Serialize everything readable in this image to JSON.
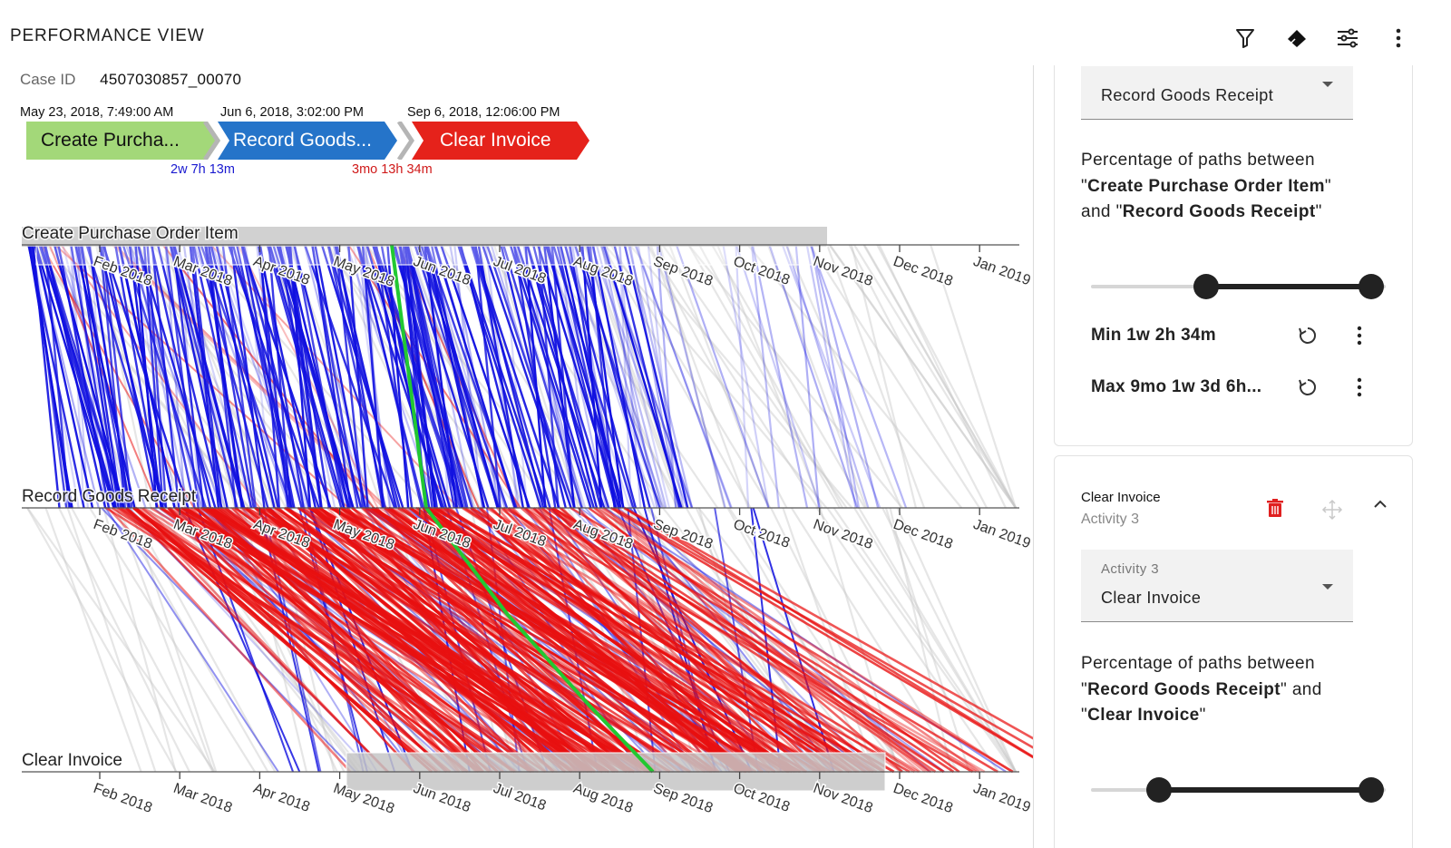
{
  "header": {
    "title": "PERFORMANCE VIEW",
    "icons": [
      "filter-icon",
      "eraser-icon",
      "tune-icon",
      "more-vert-icon"
    ]
  },
  "case": {
    "id_label": "Case ID",
    "id_value": "4507030857_00070"
  },
  "path": {
    "steps": [
      {
        "label": "Create Purcha...",
        "timestamp": "May 23, 2018, 7:49:00 AM",
        "color": "#a3d879",
        "text_color": "#111111"
      },
      {
        "label": "Record Goods...",
        "timestamp": "Jun 6, 2018, 3:02:00 PM",
        "color": "#2574c9",
        "text_color": "#ffffff"
      },
      {
        "label": "Clear Invoice",
        "timestamp": "Sep 6, 2018, 12:06:00 PM",
        "color": "#e5221b",
        "text_color": "#ffffff"
      }
    ],
    "durations": [
      {
        "text": "2w 7h 13m",
        "color": "#1a1ad0"
      },
      {
        "text": "3mo 13h 34m",
        "color": "#d01a1a"
      }
    ]
  },
  "chart_data": {
    "type": "performance-spectrum",
    "lanes": [
      "Create Purchase Order Item",
      "Record Goods Receipt",
      "Clear Invoice"
    ],
    "axis_ticks": [
      "Feb 2018",
      "Mar 2018",
      "Apr 2018",
      "May 2018",
      "Jun 2018",
      "Jul 2018",
      "Aug 2018",
      "Sep 2018",
      "Oct 2018",
      "Nov 2018",
      "Dec 2018",
      "Jan 2019"
    ],
    "colors": {
      "fast": "#1010e0",
      "slow": "#e81010",
      "highlight": "#22c832",
      "outside": "#c8c8c8"
    },
    "highlight_case": [
      "2018-05-23",
      "2018-06-06",
      "2018-09-06"
    ]
  },
  "panel": {
    "card1": {
      "select_value": "Record Goods Receipt",
      "pct_prefix": "Percentage of paths between",
      "pct_from": "Create Purchase Order Item",
      "pct_and": "and",
      "pct_to": "Record Goods Receipt",
      "slider": {
        "low": 0.39,
        "high": 0.95
      },
      "min_label": "Min 1w 2h 34m",
      "max_label": "Max 9mo 1w 3d 6h..."
    },
    "card2": {
      "title": "Clear Invoice",
      "subtitle": "Activity 3",
      "select_label": "Activity 3",
      "select_value": "Clear Invoice",
      "pct_prefix": "Percentage of paths between",
      "pct_from": "Record Goods Receipt",
      "pct_and": "and",
      "pct_to": "Clear Invoice",
      "slider": {
        "low": 0.23,
        "high": 0.95
      }
    }
  }
}
